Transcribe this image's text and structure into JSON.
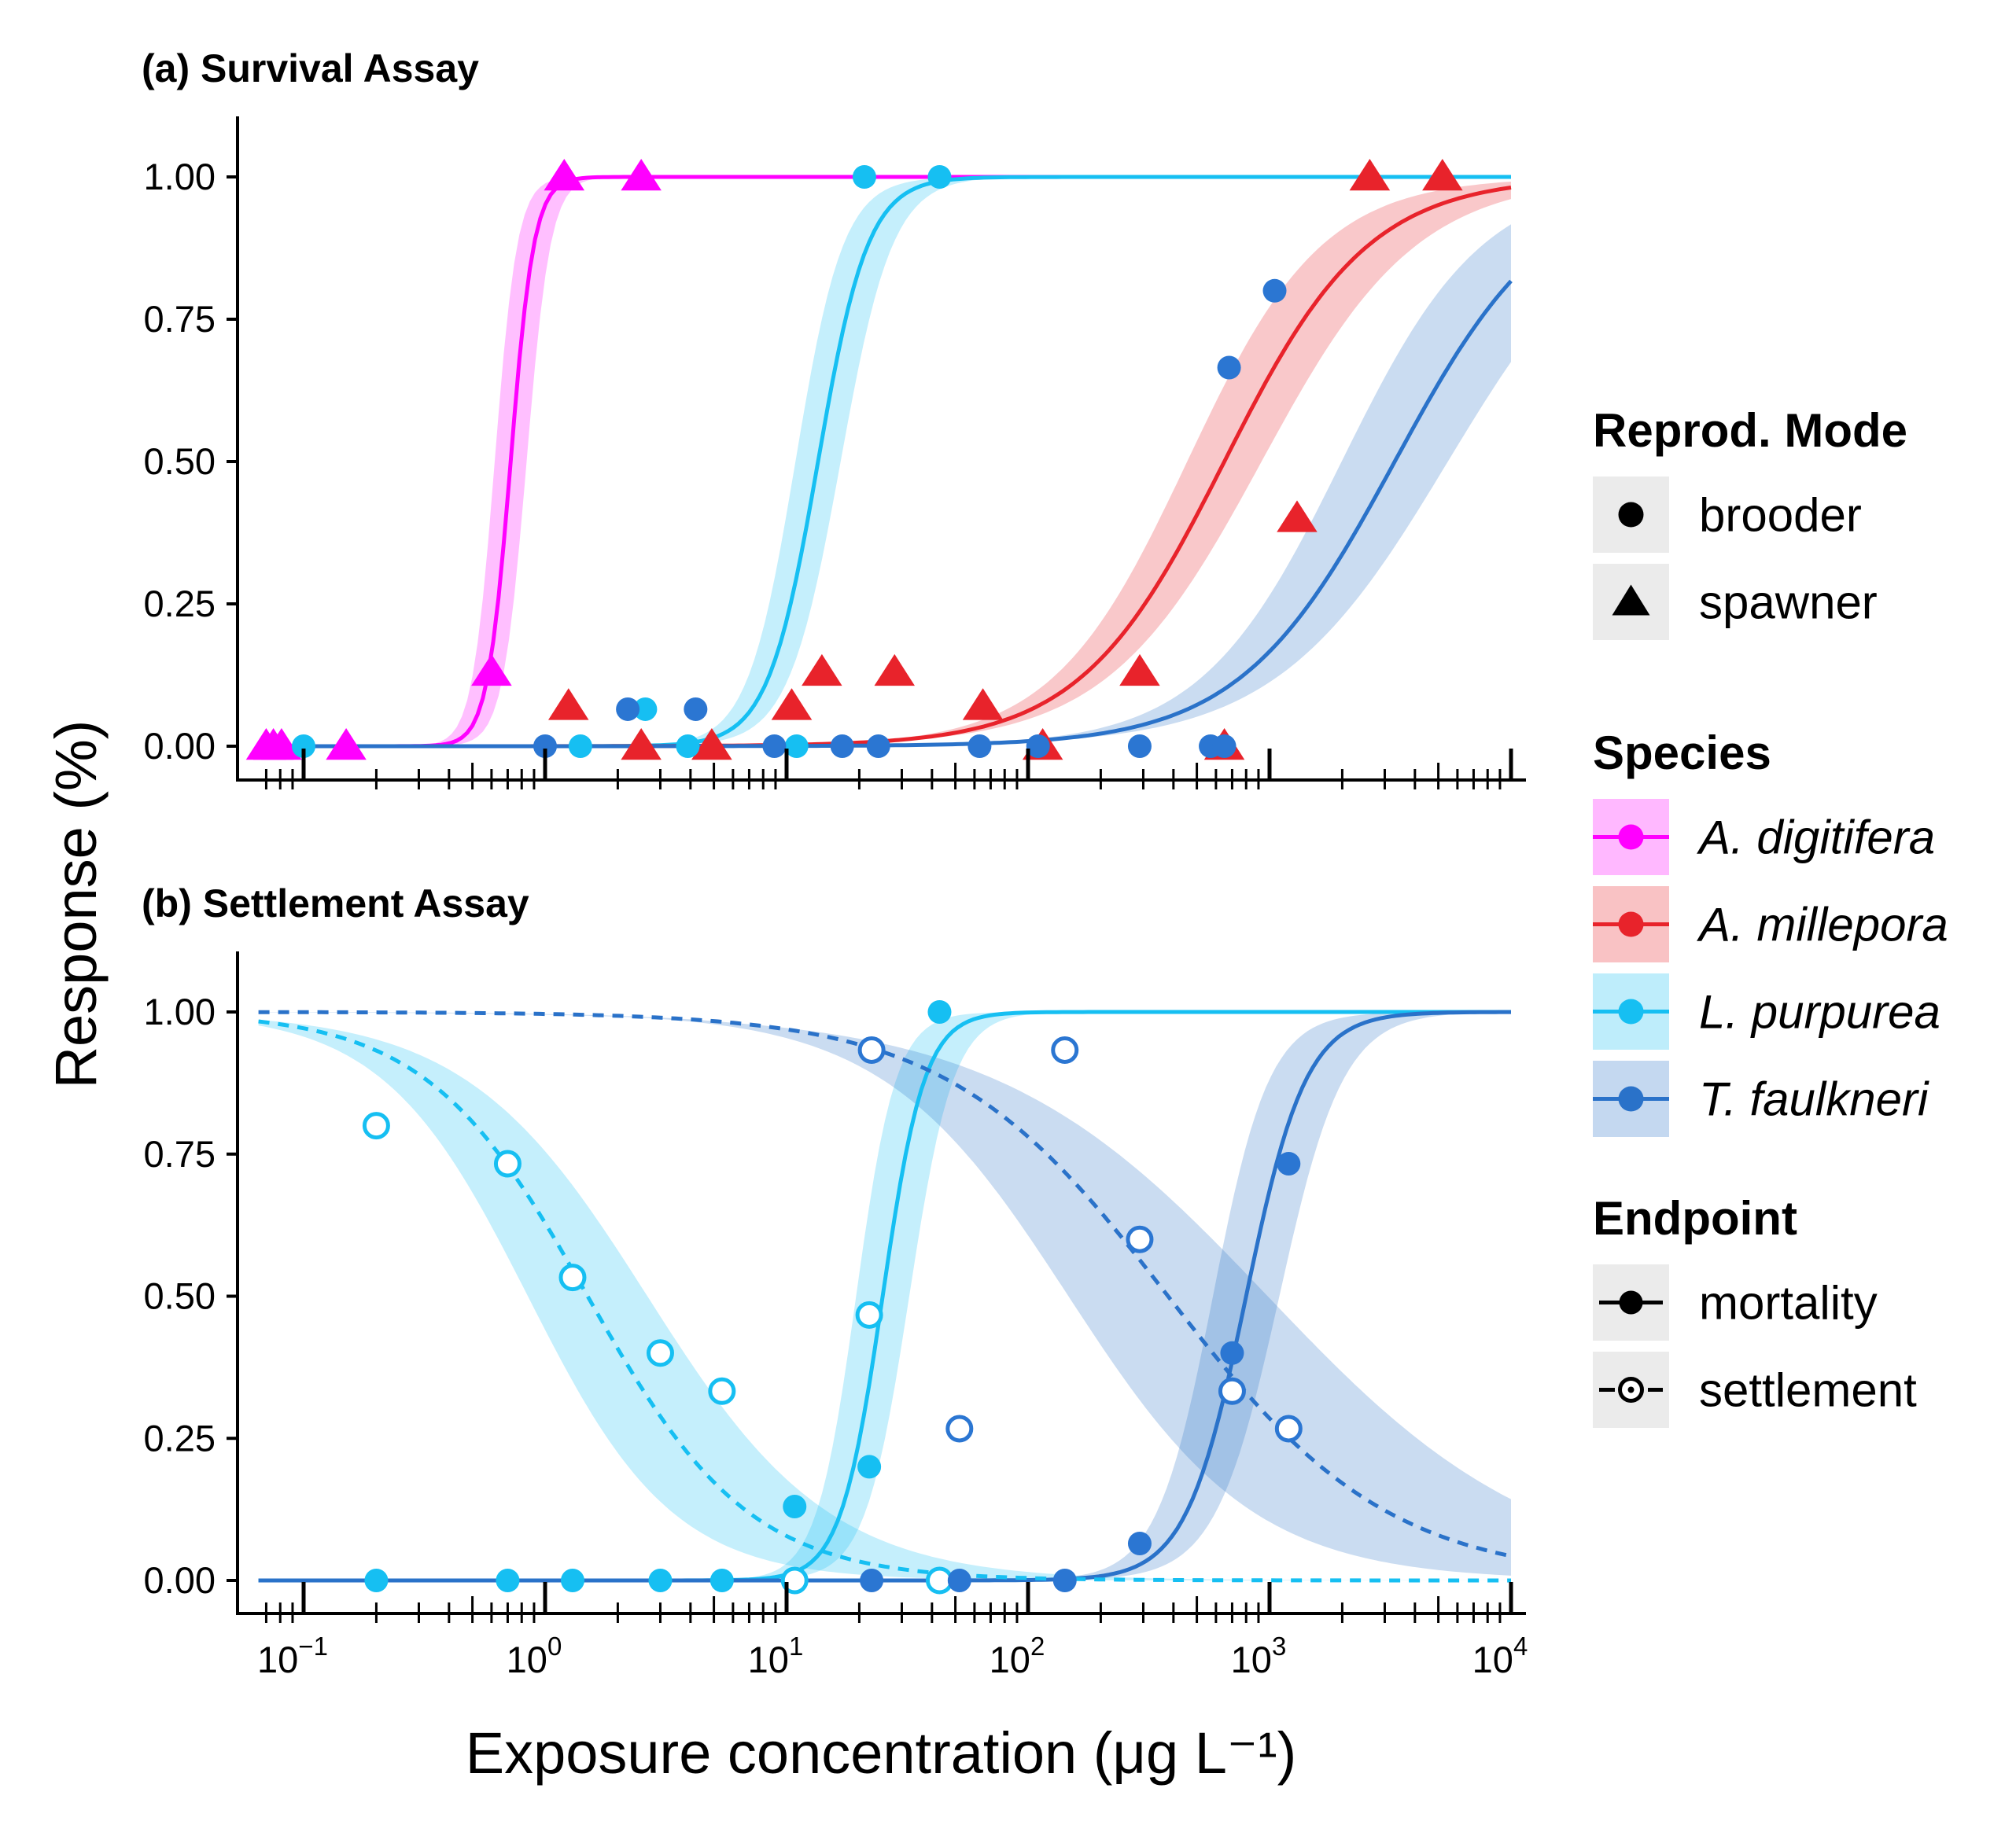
{
  "chart_data": {
    "type": "scatter",
    "xlabel": "Exposure concentration (μg L⁻¹)",
    "ylabel": "Response (%)",
    "xscale": "log10",
    "xlim": [
      0.065,
      10000
    ],
    "ylim": [
      -0.06,
      1.1
    ],
    "x_ticks": [
      {
        "base": "10",
        "exp": "−1",
        "value": 0.1
      },
      {
        "base": "10",
        "exp": "0",
        "value": 1
      },
      {
        "base": "10",
        "exp": "1",
        "value": 10
      },
      {
        "base": "10",
        "exp": "2",
        "value": 100
      },
      {
        "base": "10",
        "exp": "3",
        "value": 1000
      },
      {
        "base": "10",
        "exp": "4",
        "value": 10000
      }
    ],
    "y_ticks": [
      {
        "label": "0.00",
        "value": 0
      },
      {
        "label": "0.25",
        "value": 0.25
      },
      {
        "label": "0.50",
        "value": 0.5
      },
      {
        "label": "0.75",
        "value": 0.75
      },
      {
        "label": "1.00",
        "value": 1
      }
    ],
    "colors": {
      "A. digitifera": "#ff00ff",
      "A. millepora": "#e8232b",
      "L. purpurea": "#16bff2",
      "T. faulkneri": "#2a72c9",
      "T. faulkneri points": "#2b76d2"
    },
    "panels": [
      {
        "title": "(a) Survival Assay",
        "curves": [
          {
            "species": "A. digitifera",
            "endpoint": "mortality",
            "ec50": 0.72,
            "slope": 9.0,
            "direction": "increasing",
            "band": 0.12
          },
          {
            "species": "L. purpurea",
            "endpoint": "mortality",
            "ec50": 13.5,
            "slope": 4.2,
            "direction": "increasing",
            "band": 0.17
          },
          {
            "species": "A. millepora",
            "endpoint": "mortality",
            "ec50": 650,
            "slope": 1.45,
            "direction": "increasing",
            "band": 0.28
          },
          {
            "species": "T. faulkneri",
            "endpoint": "mortality",
            "ec50": 3300,
            "slope": 1.35,
            "direction": "increasing",
            "band": 0.4
          }
        ],
        "points": [
          {
            "species": "A. digitifera",
            "shape": "triangle",
            "filled": true,
            "x": 0.07,
            "y": 0
          },
          {
            "species": "A. digitifera",
            "shape": "triangle",
            "filled": true,
            "x": 0.075,
            "y": 0
          },
          {
            "species": "A. digitifera",
            "shape": "triangle",
            "filled": true,
            "x": 0.081,
            "y": 0
          },
          {
            "species": "A. digitifera",
            "shape": "triangle",
            "filled": true,
            "x": 0.15,
            "y": 0
          },
          {
            "species": "A. digitifera",
            "shape": "triangle",
            "filled": true,
            "x": 0.6,
            "y": 0.13
          },
          {
            "species": "A. digitifera",
            "shape": "triangle",
            "filled": true,
            "x": 1.2,
            "y": 1.0
          },
          {
            "species": "A. digitifera",
            "shape": "triangle",
            "filled": true,
            "x": 2.5,
            "y": 1.0
          },
          {
            "species": "A. millepora",
            "shape": "triangle",
            "filled": true,
            "x": 1.25,
            "y": 0.07
          },
          {
            "species": "A. millepora",
            "shape": "triangle",
            "filled": true,
            "x": 2.5,
            "y": 0.0
          },
          {
            "species": "A. millepora",
            "shape": "triangle",
            "filled": true,
            "x": 4.9,
            "y": 0.0
          },
          {
            "species": "A. millepora",
            "shape": "triangle",
            "filled": true,
            "x": 10.5,
            "y": 0.07
          },
          {
            "species": "A. millepora",
            "shape": "triangle",
            "filled": true,
            "x": 14,
            "y": 0.13
          },
          {
            "species": "A. millepora",
            "shape": "triangle",
            "filled": true,
            "x": 28,
            "y": 0.13
          },
          {
            "species": "A. millepora",
            "shape": "triangle",
            "filled": true,
            "x": 65,
            "y": 0.07
          },
          {
            "species": "A. millepora",
            "shape": "triangle",
            "filled": true,
            "x": 115,
            "y": 0.0
          },
          {
            "species": "A. millepora",
            "shape": "triangle",
            "filled": true,
            "x": 290,
            "y": 0.13
          },
          {
            "species": "A. millepora",
            "shape": "triangle",
            "filled": true,
            "x": 650,
            "y": 0.0
          },
          {
            "species": "A. millepora",
            "shape": "triangle",
            "filled": true,
            "x": 1300,
            "y": 0.4
          },
          {
            "species": "A. millepora",
            "shape": "triangle",
            "filled": true,
            "x": 2600,
            "y": 1.0
          },
          {
            "species": "A. millepora",
            "shape": "triangle",
            "filled": true,
            "x": 5200,
            "y": 1.0
          },
          {
            "species": "L. purpurea",
            "shape": "circle",
            "filled": true,
            "x": 0.1,
            "y": 0
          },
          {
            "species": "L. purpurea",
            "shape": "circle",
            "filled": true,
            "x": 1.4,
            "y": 0
          },
          {
            "species": "L. purpurea",
            "shape": "circle",
            "filled": true,
            "x": 2.6,
            "y": 0.065
          },
          {
            "species": "L. purpurea",
            "shape": "circle",
            "filled": true,
            "x": 3.9,
            "y": 0
          },
          {
            "species": "L. purpurea",
            "shape": "circle",
            "filled": true,
            "x": 11,
            "y": 0
          },
          {
            "species": "L. purpurea",
            "shape": "circle",
            "filled": true,
            "x": 21,
            "y": 1.0
          },
          {
            "species": "L. purpurea",
            "shape": "circle",
            "filled": true,
            "x": 43,
            "y": 1.0
          },
          {
            "species": "T. faulkneri",
            "shape": "circle",
            "filled": true,
            "x": 1.0,
            "y": 0
          },
          {
            "species": "T. faulkneri",
            "shape": "circle",
            "filled": true,
            "x": 2.2,
            "y": 0.065
          },
          {
            "species": "T. faulkneri",
            "shape": "circle",
            "filled": true,
            "x": 4.2,
            "y": 0.065
          },
          {
            "species": "T. faulkneri",
            "shape": "circle",
            "filled": true,
            "x": 8.9,
            "y": 0
          },
          {
            "species": "T. faulkneri",
            "shape": "circle",
            "filled": true,
            "x": 17,
            "y": 0
          },
          {
            "species": "T. faulkneri",
            "shape": "circle",
            "filled": true,
            "x": 24,
            "y": 0
          },
          {
            "species": "T. faulkneri",
            "shape": "circle",
            "filled": true,
            "x": 63,
            "y": 0
          },
          {
            "species": "T. faulkneri",
            "shape": "circle",
            "filled": true,
            "x": 110,
            "y": 0
          },
          {
            "species": "T. faulkneri",
            "shape": "circle",
            "filled": true,
            "x": 290,
            "y": 0
          },
          {
            "species": "T. faulkneri",
            "shape": "circle",
            "filled": true,
            "x": 570,
            "y": 0
          },
          {
            "species": "T. faulkneri",
            "shape": "circle",
            "filled": true,
            "x": 650,
            "y": 0
          },
          {
            "species": "T. faulkneri",
            "shape": "circle",
            "filled": true,
            "x": 680,
            "y": 0.665
          },
          {
            "species": "T. faulkneri",
            "shape": "circle",
            "filled": true,
            "x": 1050,
            "y": 0.8
          }
        ]
      },
      {
        "title": "(b) Settlement Assay",
        "curves": [
          {
            "species": "L. purpurea",
            "endpoint": "mortality",
            "ec50": 25,
            "slope": 5.0,
            "direction": "increasing",
            "band": 0.2
          },
          {
            "species": "T. faulkneri",
            "endpoint": "mortality",
            "ec50": 800,
            "slope": 3.5,
            "direction": "increasing",
            "band": 0.25
          },
          {
            "species": "L. purpurea",
            "endpoint": "settlement",
            "ec50": 1.5,
            "slope": 1.3,
            "direction": "decreasing",
            "band": 0.45
          },
          {
            "species": "T. faulkneri",
            "endpoint": "settlement",
            "ec50": 380,
            "slope": 0.95,
            "direction": "decreasing",
            "band": 0.75
          }
        ],
        "points": [
          {
            "species": "L. purpurea",
            "shape": "circle",
            "filled": true,
            "x": 0.2,
            "y": 0
          },
          {
            "species": "L. purpurea",
            "shape": "circle",
            "filled": true,
            "x": 0.7,
            "y": 0
          },
          {
            "species": "L. purpurea",
            "shape": "circle",
            "filled": true,
            "x": 1.3,
            "y": 0
          },
          {
            "species": "L. purpurea",
            "shape": "circle",
            "filled": true,
            "x": 3.0,
            "y": 0
          },
          {
            "species": "L. purpurea",
            "shape": "circle",
            "filled": true,
            "x": 5.4,
            "y": 0
          },
          {
            "species": "L. purpurea",
            "shape": "circle",
            "filled": true,
            "x": 10.8,
            "y": 0.13
          },
          {
            "species": "L. purpurea",
            "shape": "circle",
            "filled": true,
            "x": 22,
            "y": 0.2
          },
          {
            "species": "L. purpurea",
            "shape": "circle",
            "filled": true,
            "x": 43,
            "y": 1.0
          },
          {
            "species": "L. purpurea",
            "shape": "circle",
            "filled": false,
            "x": 0.2,
            "y": 0.8
          },
          {
            "species": "L. purpurea",
            "shape": "circle",
            "filled": false,
            "x": 0.7,
            "y": 0.733
          },
          {
            "species": "L. purpurea",
            "shape": "circle",
            "filled": false,
            "x": 1.3,
            "y": 0.533
          },
          {
            "species": "L. purpurea",
            "shape": "circle",
            "filled": false,
            "x": 3.0,
            "y": 0.4
          },
          {
            "species": "L. purpurea",
            "shape": "circle",
            "filled": false,
            "x": 5.4,
            "y": 0.333
          },
          {
            "species": "L. purpurea",
            "shape": "circle",
            "filled": false,
            "x": 10.8,
            "y": 0
          },
          {
            "species": "L. purpurea",
            "shape": "circle",
            "filled": false,
            "x": 22,
            "y": 0.467
          },
          {
            "species": "L. purpurea",
            "shape": "circle",
            "filled": false,
            "x": 43,
            "y": 0
          },
          {
            "species": "T. faulkneri",
            "shape": "circle",
            "filled": true,
            "x": 22.5,
            "y": 0
          },
          {
            "species": "T. faulkneri",
            "shape": "circle",
            "filled": true,
            "x": 52,
            "y": 0
          },
          {
            "species": "T. faulkneri",
            "shape": "circle",
            "filled": true,
            "x": 142,
            "y": 0
          },
          {
            "species": "T. faulkneri",
            "shape": "circle",
            "filled": true,
            "x": 290,
            "y": 0.065
          },
          {
            "species": "T. faulkneri",
            "shape": "circle",
            "filled": true,
            "x": 700,
            "y": 0.4
          },
          {
            "species": "T. faulkneri",
            "shape": "circle",
            "filled": true,
            "x": 1200,
            "y": 0.733
          },
          {
            "species": "T. faulkneri",
            "shape": "circle",
            "filled": false,
            "x": 22.5,
            "y": 0.933
          },
          {
            "species": "T. faulkneri",
            "shape": "circle",
            "filled": false,
            "x": 52,
            "y": 0.267
          },
          {
            "species": "T. faulkneri",
            "shape": "circle",
            "filled": false,
            "x": 142,
            "y": 0.933
          },
          {
            "species": "T. faulkneri",
            "shape": "circle",
            "filled": false,
            "x": 290,
            "y": 0.6
          },
          {
            "species": "T. faulkneri",
            "shape": "circle",
            "filled": false,
            "x": 700,
            "y": 0.333
          },
          {
            "species": "T. faulkneri",
            "shape": "circle",
            "filled": false,
            "x": 1200,
            "y": 0.267
          }
        ]
      }
    ],
    "legend": {
      "position": "right",
      "groups": [
        {
          "title": "Reprod. Mode",
          "items": [
            {
              "label": "brooder",
              "key": "circle"
            },
            {
              "label": "spawner",
              "key": "triangle"
            }
          ]
        },
        {
          "title": "Species",
          "items": [
            {
              "label": "A. digitifera",
              "key": "A. digitifera"
            },
            {
              "label": "A. millepora",
              "key": "A. millepora"
            },
            {
              "label": "L. purpurea",
              "key": "L. purpurea"
            },
            {
              "label": "T. faulkneri",
              "key": "T. faulkneri"
            }
          ]
        },
        {
          "title": "Endpoint",
          "items": [
            {
              "label": "mortality",
              "key": "solid"
            },
            {
              "label": "settlement",
              "key": "dashed"
            }
          ]
        }
      ]
    }
  }
}
